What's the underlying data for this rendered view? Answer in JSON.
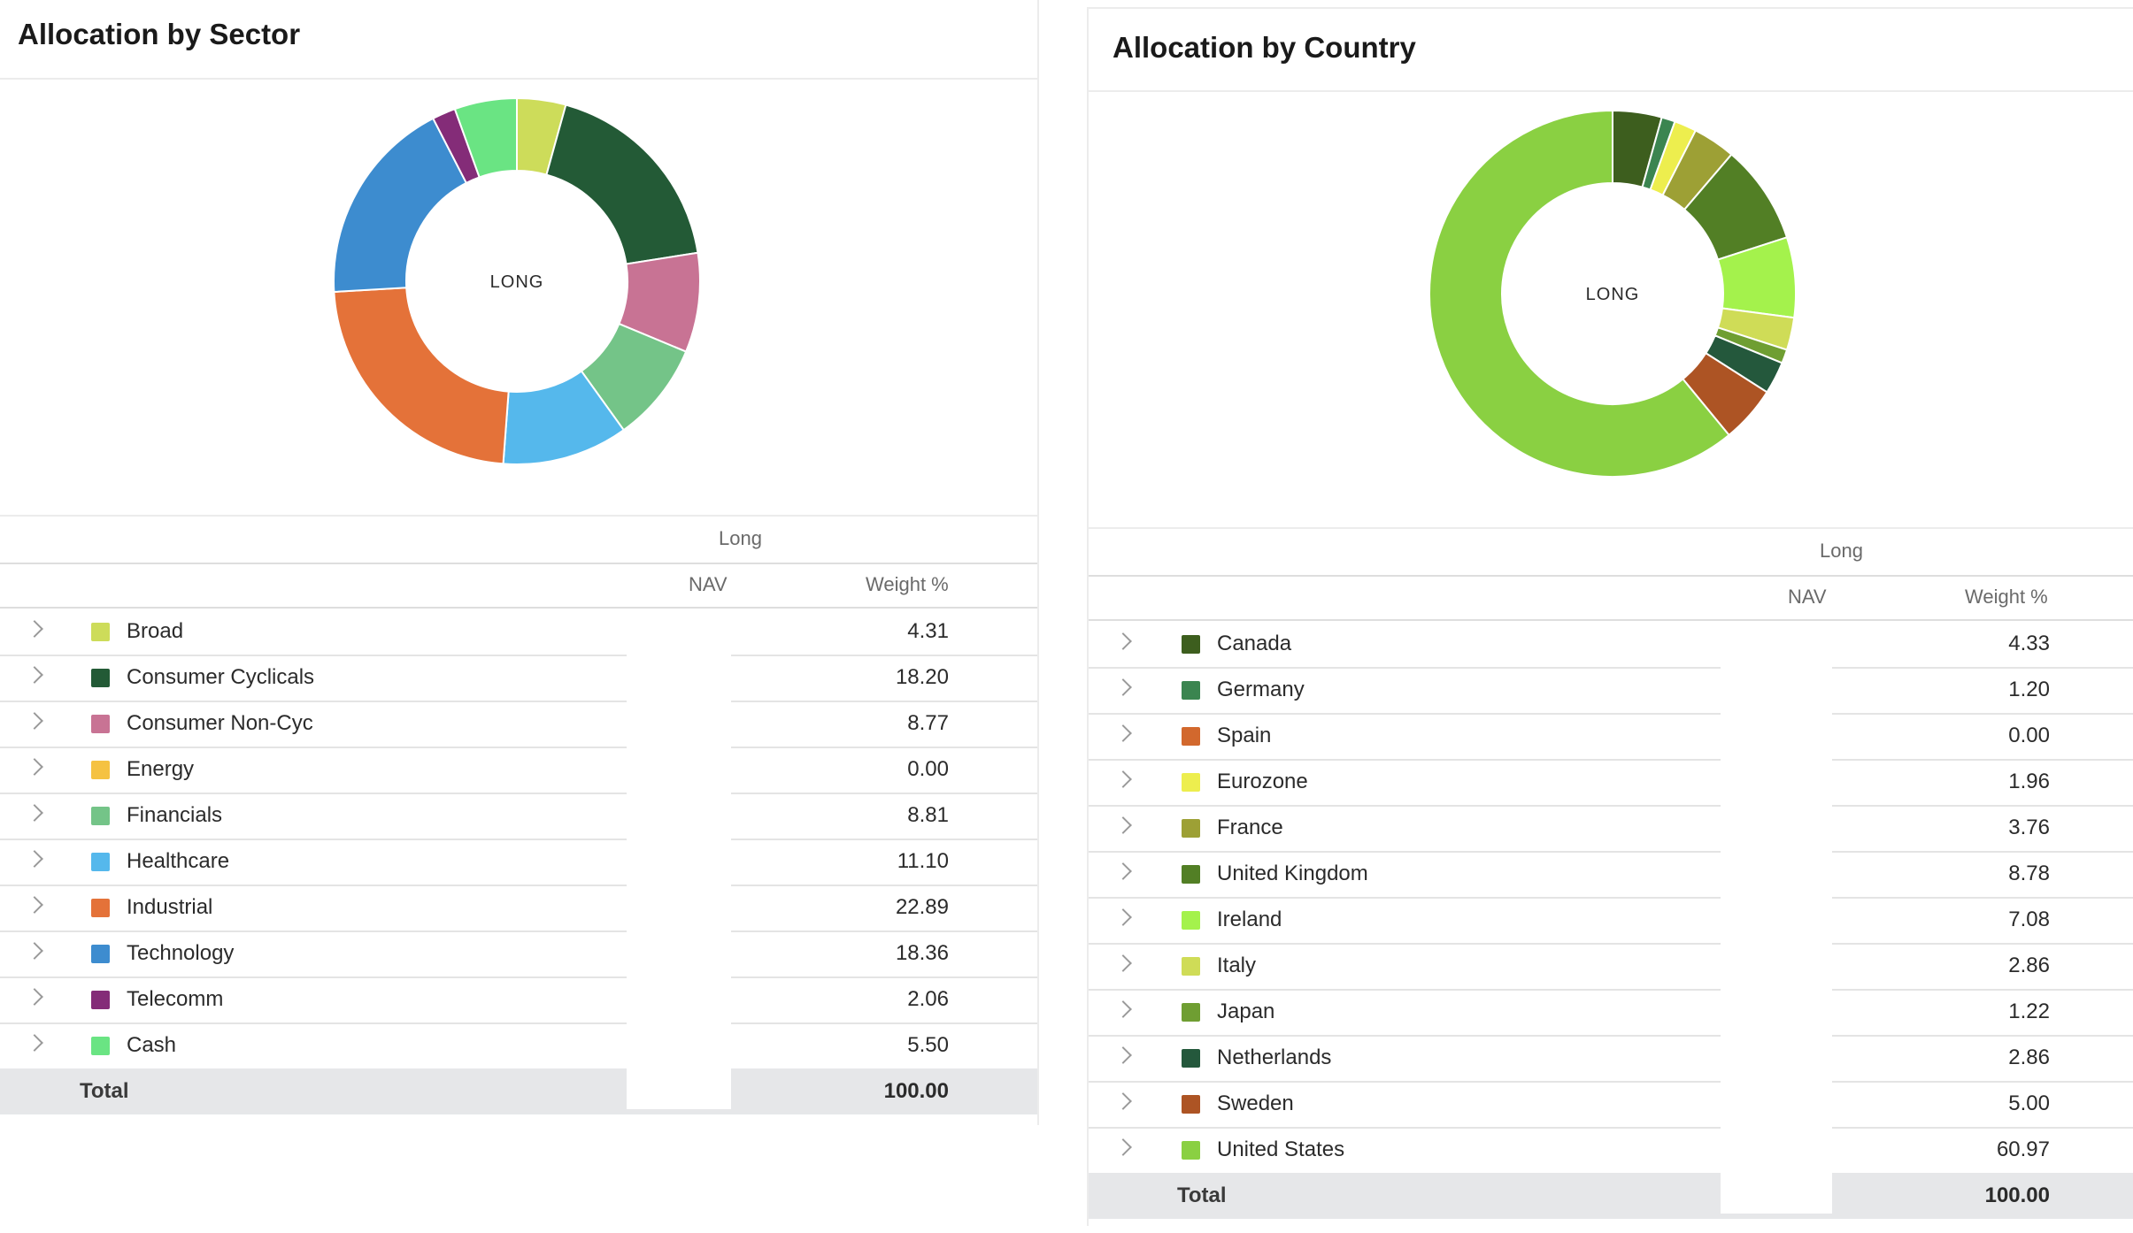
{
  "colors": {
    "Broad": "#cddc5a",
    "Consumer Cyclicals": "#235a36",
    "Consumer Non-Cyc": "#c87394",
    "Energy": "#f5c242",
    "Financials": "#74c488",
    "Healthcare": "#55b8ec",
    "Industrial": "#e47239",
    "Technology": "#3d8ccf",
    "Telecomm": "#842c78",
    "Cash": "#6ae483",
    "Canada": "#3d5e1e",
    "Germany": "#3b8550",
    "Spain": "#d2682d",
    "Eurozone": "#edee4e",
    "France": "#9da035",
    "United Kingdom": "#527f25",
    "Ireland": "#a4f24c",
    "Italy": "#cfdc57",
    "Japan": "#6f9e32",
    "Netherlands": "#24583c",
    "Sweden": "#ad5424",
    "United States": "#8ad042"
  },
  "chart_data": [
    {
      "type": "pie",
      "title": "Allocation by Sector",
      "center_label": "LONG",
      "column_group": "Long",
      "columns": [
        "NAV",
        "Weight %"
      ],
      "categories": [
        "Broad",
        "Consumer Cyclicals",
        "Consumer Non-Cyc",
        "Energy",
        "Financials",
        "Healthcare",
        "Industrial",
        "Technology",
        "Telecomm",
        "Cash"
      ],
      "values": [
        4.31,
        18.2,
        8.77,
        0.0,
        8.81,
        11.1,
        22.89,
        18.36,
        2.06,
        5.5
      ],
      "value_labels": [
        "4.31",
        "18.20",
        "8.77",
        "0.00",
        "8.81",
        "11.10",
        "22.89",
        "18.36",
        "2.06",
        "5.50"
      ],
      "total_label": "Total",
      "total_value": "100.00"
    },
    {
      "type": "pie",
      "title": "Allocation by Country",
      "center_label": "LONG",
      "column_group": "Long",
      "columns": [
        "NAV",
        "Weight %"
      ],
      "categories": [
        "Canada",
        "Germany",
        "Spain",
        "Eurozone",
        "France",
        "United Kingdom",
        "Ireland",
        "Italy",
        "Japan",
        "Netherlands",
        "Sweden",
        "United States"
      ],
      "values": [
        4.33,
        1.2,
        0.0,
        1.96,
        3.76,
        8.78,
        7.08,
        2.86,
        1.22,
        2.86,
        5.0,
        60.97
      ],
      "value_labels": [
        "4.33",
        "1.20",
        "0.00",
        "1.96",
        "3.76",
        "8.78",
        "7.08",
        "2.86",
        "1.22",
        "2.86",
        "5.00",
        "60.97"
      ],
      "total_label": "Total",
      "total_value": "100.00"
    }
  ]
}
